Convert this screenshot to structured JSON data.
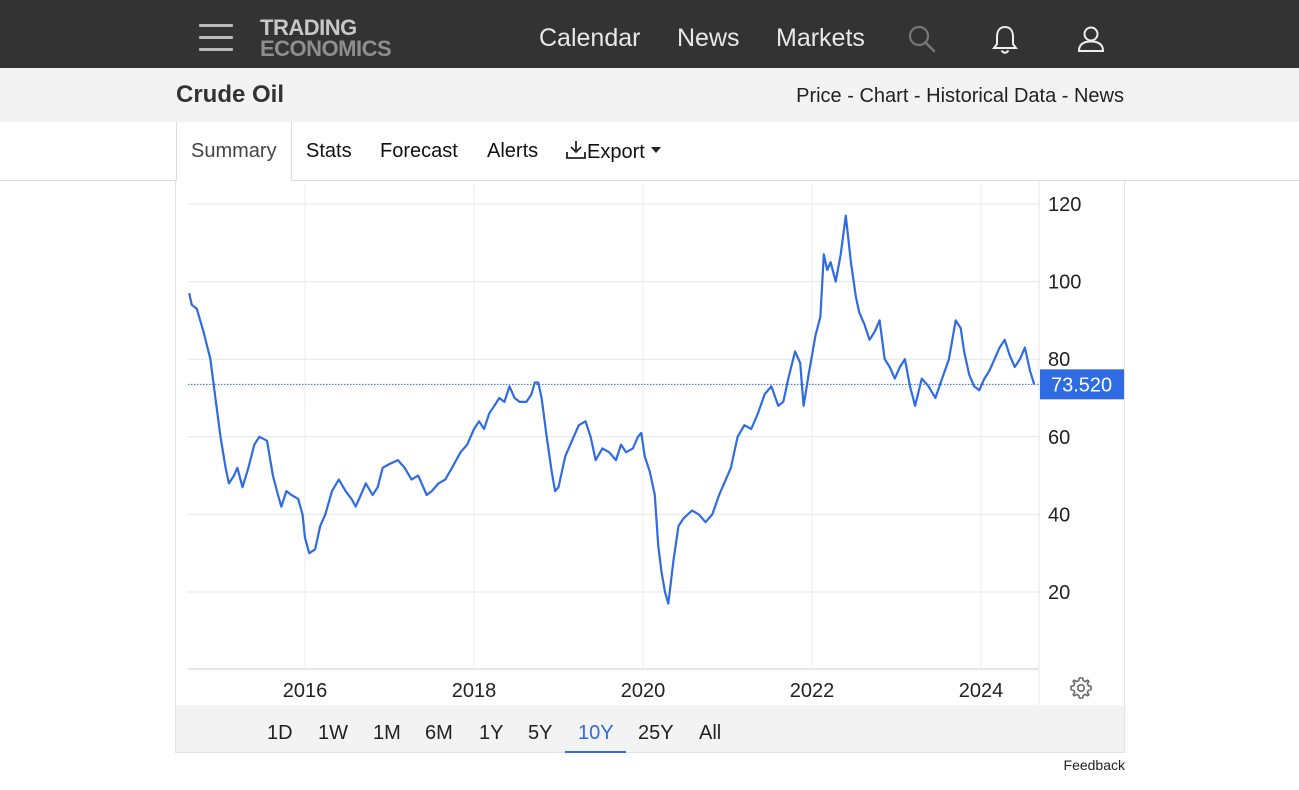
{
  "header": {
    "logo_line1": "TRADING",
    "logo_line2": "ECONOMICS",
    "nav": [
      "Calendar",
      "News",
      "Markets"
    ]
  },
  "title_bar": {
    "title": "Crude Oil",
    "links": [
      "Price",
      "Chart",
      "Historical Data",
      "News"
    ],
    "separator": " - "
  },
  "tabs": {
    "summary": "Summary",
    "stats": "Stats",
    "forecast": "Forecast",
    "alerts": "Alerts",
    "export": "Export"
  },
  "ranges": {
    "items": [
      "1D",
      "1W",
      "1M",
      "6M",
      "1Y",
      "5Y",
      "10Y",
      "25Y",
      "All"
    ],
    "selected": "10Y"
  },
  "feedback": "Feedback",
  "colors": {
    "topbar": "#333333",
    "line": "#2f6be3",
    "price_badge": "#2f6be3",
    "active_range": "#2f6be3"
  },
  "chart_data": {
    "type": "line",
    "title": "",
    "xlabel": "",
    "ylabel": "",
    "x_ticks": [
      "2016",
      "2018",
      "2020",
      "2022",
      "2024"
    ],
    "y_ticks": [
      20,
      40,
      60,
      80,
      100,
      120
    ],
    "ylim": [
      0,
      124
    ],
    "xlim": [
      2014.63,
      2024.65
    ],
    "grid": true,
    "current_price_label": "73.520",
    "current_price": 73.52,
    "series": [
      {
        "values": [
          [
            2014.63,
            97
          ],
          [
            2014.66,
            94
          ],
          [
            2014.72,
            93
          ],
          [
            2014.8,
            87
          ],
          [
            2014.88,
            80
          ],
          [
            2014.94,
            70
          ],
          [
            2015.0,
            60
          ],
          [
            2015.06,
            52
          ],
          [
            2015.1,
            48
          ],
          [
            2015.16,
            50
          ],
          [
            2015.2,
            52
          ],
          [
            2015.26,
            47
          ],
          [
            2015.33,
            52
          ],
          [
            2015.4,
            58
          ],
          [
            2015.46,
            60
          ],
          [
            2015.55,
            59
          ],
          [
            2015.62,
            50
          ],
          [
            2015.68,
            45
          ],
          [
            2015.72,
            42
          ],
          [
            2015.78,
            46
          ],
          [
            2015.84,
            45
          ],
          [
            2015.92,
            44
          ],
          [
            2015.97,
            40
          ],
          [
            2016.0,
            34
          ],
          [
            2016.05,
            30
          ],
          [
            2016.12,
            31
          ],
          [
            2016.18,
            37
          ],
          [
            2016.24,
            40
          ],
          [
            2016.32,
            46
          ],
          [
            2016.4,
            49
          ],
          [
            2016.48,
            46
          ],
          [
            2016.55,
            44
          ],
          [
            2016.6,
            42
          ],
          [
            2016.66,
            45
          ],
          [
            2016.72,
            48
          ],
          [
            2016.8,
            45
          ],
          [
            2016.86,
            47
          ],
          [
            2016.92,
            52
          ],
          [
            2017.0,
            53
          ],
          [
            2017.1,
            54
          ],
          [
            2017.18,
            52
          ],
          [
            2017.26,
            49
          ],
          [
            2017.34,
            50
          ],
          [
            2017.44,
            45
          ],
          [
            2017.5,
            46
          ],
          [
            2017.58,
            48
          ],
          [
            2017.66,
            49
          ],
          [
            2017.74,
            52
          ],
          [
            2017.84,
            56
          ],
          [
            2017.92,
            58
          ],
          [
            2018.0,
            62
          ],
          [
            2018.06,
            64
          ],
          [
            2018.12,
            62
          ],
          [
            2018.18,
            66
          ],
          [
            2018.24,
            68
          ],
          [
            2018.3,
            70
          ],
          [
            2018.36,
            69
          ],
          [
            2018.42,
            73
          ],
          [
            2018.48,
            70
          ],
          [
            2018.54,
            69
          ],
          [
            2018.62,
            69
          ],
          [
            2018.68,
            71
          ],
          [
            2018.72,
            74
          ],
          [
            2018.76,
            74
          ],
          [
            2018.8,
            70
          ],
          [
            2018.86,
            60
          ],
          [
            2018.92,
            51
          ],
          [
            2018.96,
            46
          ],
          [
            2019.0,
            47
          ],
          [
            2019.08,
            55
          ],
          [
            2019.16,
            59
          ],
          [
            2019.24,
            63
          ],
          [
            2019.32,
            64
          ],
          [
            2019.38,
            60
          ],
          [
            2019.44,
            54
          ],
          [
            2019.52,
            57
          ],
          [
            2019.6,
            56
          ],
          [
            2019.68,
            54
          ],
          [
            2019.74,
            58
          ],
          [
            2019.8,
            56
          ],
          [
            2019.88,
            57
          ],
          [
            2019.94,
            60
          ],
          [
            2019.98,
            61
          ],
          [
            2020.02,
            55
          ],
          [
            2020.08,
            51
          ],
          [
            2020.14,
            45
          ],
          [
            2020.18,
            32
          ],
          [
            2020.22,
            25
          ],
          [
            2020.26,
            20
          ],
          [
            2020.3,
            17
          ],
          [
            2020.36,
            28
          ],
          [
            2020.42,
            37
          ],
          [
            2020.48,
            39
          ],
          [
            2020.58,
            41
          ],
          [
            2020.66,
            40
          ],
          [
            2020.74,
            38
          ],
          [
            2020.82,
            40
          ],
          [
            2020.9,
            45
          ],
          [
            2020.96,
            48
          ],
          [
            2021.04,
            52
          ],
          [
            2021.12,
            60
          ],
          [
            2021.2,
            63
          ],
          [
            2021.28,
            62
          ],
          [
            2021.36,
            66
          ],
          [
            2021.44,
            71
          ],
          [
            2021.52,
            73
          ],
          [
            2021.6,
            68
          ],
          [
            2021.66,
            69
          ],
          [
            2021.72,
            75
          ],
          [
            2021.8,
            82
          ],
          [
            2021.86,
            79
          ],
          [
            2021.9,
            68
          ],
          [
            2021.96,
            76
          ],
          [
            2022.04,
            86
          ],
          [
            2022.1,
            91
          ],
          [
            2022.14,
            107
          ],
          [
            2022.18,
            103
          ],
          [
            2022.22,
            105
          ],
          [
            2022.28,
            100
          ],
          [
            2022.34,
            107
          ],
          [
            2022.4,
            117
          ],
          [
            2022.46,
            105
          ],
          [
            2022.52,
            96
          ],
          [
            2022.56,
            92
          ],
          [
            2022.62,
            89
          ],
          [
            2022.68,
            85
          ],
          [
            2022.74,
            87
          ],
          [
            2022.8,
            90
          ],
          [
            2022.86,
            80
          ],
          [
            2022.92,
            78
          ],
          [
            2022.98,
            75
          ],
          [
            2023.04,
            78
          ],
          [
            2023.1,
            80
          ],
          [
            2023.16,
            73
          ],
          [
            2023.22,
            68
          ],
          [
            2023.3,
            75
          ],
          [
            2023.38,
            73
          ],
          [
            2023.46,
            70
          ],
          [
            2023.54,
            75
          ],
          [
            2023.62,
            80
          ],
          [
            2023.7,
            90
          ],
          [
            2023.76,
            88
          ],
          [
            2023.8,
            82
          ],
          [
            2023.86,
            76
          ],
          [
            2023.92,
            73
          ],
          [
            2023.98,
            72
          ],
          [
            2024.04,
            75
          ],
          [
            2024.1,
            77
          ],
          [
            2024.16,
            80
          ],
          [
            2024.22,
            83
          ],
          [
            2024.28,
            85
          ],
          [
            2024.34,
            81
          ],
          [
            2024.4,
            78
          ],
          [
            2024.46,
            80
          ],
          [
            2024.52,
            83
          ],
          [
            2024.58,
            77
          ],
          [
            2024.63,
            73.52
          ]
        ]
      }
    ]
  }
}
